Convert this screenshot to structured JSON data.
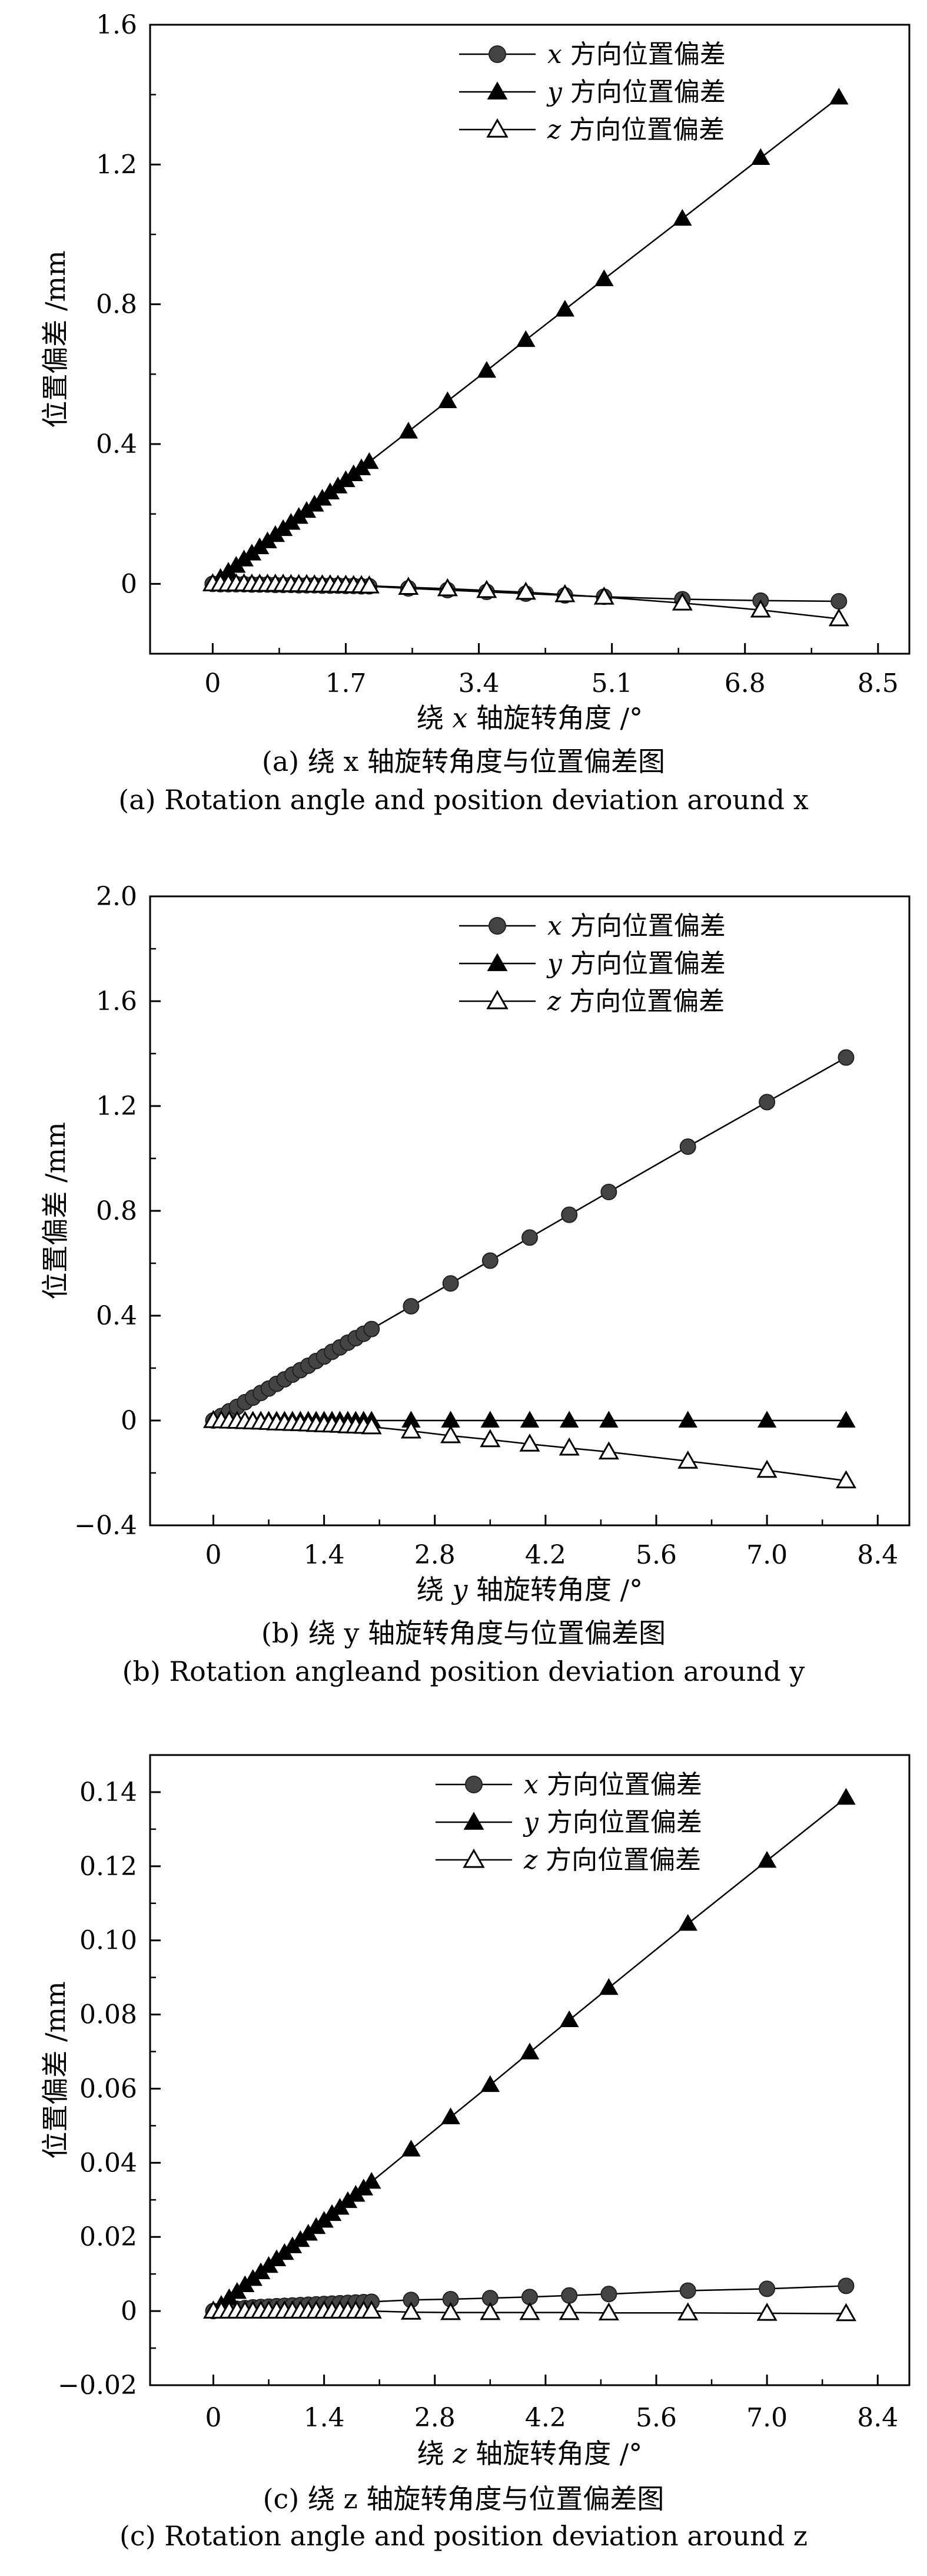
{
  "series_labels": {
    "x": {
      "var": "x",
      "text": "方向位置偏差"
    },
    "y": {
      "var": "y",
      "text": "方向位置偏差"
    },
    "z": {
      "var": "z",
      "text": "方向位置偏差"
    }
  },
  "chart_data": [
    {
      "type": "line",
      "ylabel": "位置偏差 /mm",
      "xlabel_prefix": "绕",
      "xlabel_var": "x",
      "xlabel_suffix": "轴旋转角度 /°",
      "caption_cn": "(a) 绕 x 轴旋转角度与位置偏差图",
      "caption_en": "(a) Rotation angle and position deviation around x",
      "xlim": [
        -0.8,
        8.9
      ],
      "ylim": [
        -0.2,
        1.6
      ],
      "xticks": [
        "0",
        "1.7",
        "3.4",
        "5.1",
        "6.8",
        "8.5"
      ],
      "xtick_values": [
        0,
        1.7,
        3.4,
        5.1,
        6.8,
        8.5
      ],
      "yticks": [
        "0",
        "0.4",
        "0.8",
        "1.2",
        "1.6"
      ],
      "ytick_values": [
        0,
        0.4,
        0.8,
        1.2,
        1.6
      ],
      "x": [
        0,
        0.1,
        0.2,
        0.3,
        0.4,
        0.5,
        0.6,
        0.7,
        0.8,
        0.9,
        1.0,
        1.1,
        1.2,
        1.3,
        1.4,
        1.5,
        1.6,
        1.7,
        1.8,
        1.9,
        2.0,
        2.5,
        3.0,
        3.5,
        4.0,
        4.5,
        5.0,
        6.0,
        7.0,
        8.0
      ],
      "series": [
        {
          "key": "x",
          "marker": "circle",
          "values": [
            0,
            -0.001,
            -0.001,
            -0.001,
            -0.001,
            -0.002,
            -0.002,
            -0.002,
            -0.003,
            -0.003,
            -0.003,
            -0.004,
            -0.004,
            -0.004,
            -0.005,
            -0.005,
            -0.005,
            -0.006,
            -0.006,
            -0.007,
            -0.007,
            -0.013,
            -0.018,
            -0.023,
            -0.028,
            -0.033,
            -0.037,
            -0.044,
            -0.048,
            -0.05
          ]
        },
        {
          "key": "y",
          "marker": "triangle-filled",
          "values": [
            0,
            0.017,
            0.035,
            0.052,
            0.07,
            0.087,
            0.105,
            0.122,
            0.14,
            0.157,
            0.175,
            0.192,
            0.209,
            0.227,
            0.244,
            0.262,
            0.279,
            0.297,
            0.314,
            0.331,
            0.349,
            0.436,
            0.523,
            0.61,
            0.698,
            0.785,
            0.872,
            1.045,
            1.219,
            1.392
          ]
        },
        {
          "key": "z",
          "marker": "triangle-open",
          "values": [
            0,
            0,
            0,
            0,
            0,
            -0.001,
            -0.001,
            -0.001,
            -0.001,
            -0.001,
            -0.002,
            -0.002,
            -0.002,
            -0.003,
            -0.003,
            -0.003,
            -0.004,
            -0.004,
            -0.005,
            -0.005,
            -0.006,
            -0.01,
            -0.014,
            -0.019,
            -0.024,
            -0.031,
            -0.038,
            -0.055,
            -0.075,
            -0.1
          ]
        }
      ]
    },
    {
      "type": "line",
      "ylabel": "位置偏差 /mm",
      "xlabel_prefix": "绕",
      "xlabel_var": "y",
      "xlabel_suffix": "轴旋转角度 /°",
      "caption_cn": "(b) 绕 y 轴旋转角度与位置偏差图",
      "caption_en": "(b) Rotation angleand position deviation around y",
      "xlim": [
        -0.8,
        8.8
      ],
      "ylim": [
        -0.4,
        2.0
      ],
      "xticks": [
        "0",
        "1.4",
        "2.8",
        "4.2",
        "5.6",
        "7.0",
        "8.4"
      ],
      "xtick_values": [
        0,
        1.4,
        2.8,
        4.2,
        5.6,
        7.0,
        8.4
      ],
      "yticks": [
        "−0.4",
        "0",
        "0.4",
        "0.8",
        "1.2",
        "1.6",
        "2.0"
      ],
      "ytick_values": [
        -0.4,
        0,
        0.4,
        0.8,
        1.2,
        1.6,
        2.0
      ],
      "x": [
        0,
        0.1,
        0.2,
        0.3,
        0.4,
        0.5,
        0.6,
        0.7,
        0.8,
        0.9,
        1.0,
        1.1,
        1.2,
        1.3,
        1.4,
        1.5,
        1.6,
        1.7,
        1.8,
        1.9,
        2.0,
        2.5,
        3.0,
        3.5,
        4.0,
        4.5,
        5.0,
        6.0,
        7.0,
        8.0
      ],
      "series": [
        {
          "key": "x",
          "marker": "circle",
          "values": [
            0,
            0.017,
            0.035,
            0.052,
            0.07,
            0.087,
            0.105,
            0.122,
            0.14,
            0.157,
            0.175,
            0.192,
            0.209,
            0.227,
            0.244,
            0.262,
            0.279,
            0.297,
            0.314,
            0.331,
            0.349,
            0.436,
            0.523,
            0.61,
            0.698,
            0.785,
            0.872,
            1.045,
            1.215,
            1.385
          ]
        },
        {
          "key": "y",
          "marker": "triangle-filled",
          "values": [
            0,
            0,
            0,
            0,
            0,
            0,
            0,
            0,
            0,
            0,
            0,
            0,
            0,
            0,
            0,
            0,
            0,
            0,
            0,
            0,
            0,
            0,
            0,
            0,
            0,
            0,
            0,
            0,
            0,
            0
          ]
        },
        {
          "key": "z",
          "marker": "triangle-open",
          "values": [
            0,
            -0.001,
            -0.002,
            -0.003,
            -0.004,
            -0.005,
            -0.006,
            -0.007,
            -0.009,
            -0.01,
            -0.011,
            -0.012,
            -0.013,
            -0.015,
            -0.016,
            -0.017,
            -0.018,
            -0.02,
            -0.021,
            -0.022,
            -0.024,
            -0.04,
            -0.058,
            -0.073,
            -0.09,
            -0.105,
            -0.12,
            -0.155,
            -0.19,
            -0.23
          ]
        }
      ]
    },
    {
      "type": "line",
      "ylabel": "位置偏差 /mm",
      "xlabel_prefix": "绕",
      "xlabel_var": "z",
      "xlabel_suffix": "轴旋转角度 /°",
      "caption_cn": "(c) 绕 z 轴旋转角度与位置偏差图",
      "caption_en": "(c) Rotation angle and position deviation around z",
      "xlim": [
        -0.8,
        8.8
      ],
      "ylim": [
        -0.02,
        0.15
      ],
      "xticks": [
        "0",
        "1.4",
        "2.8",
        "4.2",
        "5.6",
        "7.0",
        "8.4"
      ],
      "xtick_values": [
        0,
        1.4,
        2.8,
        4.2,
        5.6,
        7.0,
        8.4
      ],
      "yticks": [
        "−0.02",
        "0",
        "0.02",
        "0.04",
        "0.06",
        "0.08",
        "0.10",
        "0.12",
        "0.14"
      ],
      "ytick_values": [
        -0.02,
        0,
        0.02,
        0.04,
        0.06,
        0.08,
        0.1,
        0.12,
        0.14
      ],
      "x": [
        0,
        0.1,
        0.2,
        0.3,
        0.4,
        0.5,
        0.6,
        0.7,
        0.8,
        0.9,
        1.0,
        1.1,
        1.2,
        1.3,
        1.4,
        1.5,
        1.6,
        1.7,
        1.8,
        1.9,
        2.0,
        2.5,
        3.0,
        3.5,
        4.0,
        4.5,
        5.0,
        6.0,
        7.0,
        8.0
      ],
      "series": [
        {
          "key": "x",
          "marker": "circle",
          "values": [
            0,
            0.0002,
            0.0004,
            0.0006,
            0.0008,
            0.001,
            0.0011,
            0.0012,
            0.0013,
            0.0014,
            0.0015,
            0.0016,
            0.0017,
            0.0018,
            0.0019,
            0.002,
            0.0021,
            0.0022,
            0.0023,
            0.0024,
            0.0025,
            0.003,
            0.0032,
            0.0035,
            0.0038,
            0.0042,
            0.0046,
            0.0055,
            0.006,
            0.0068
          ]
        },
        {
          "key": "y",
          "marker": "triangle-filled",
          "values": [
            0,
            0.0017,
            0.0035,
            0.0052,
            0.007,
            0.0087,
            0.0105,
            0.0122,
            0.014,
            0.0157,
            0.0175,
            0.0192,
            0.0209,
            0.0227,
            0.0244,
            0.0262,
            0.0279,
            0.0297,
            0.0314,
            0.0331,
            0.0349,
            0.0436,
            0.0523,
            0.061,
            0.0698,
            0.0785,
            0.0872,
            0.1045,
            0.1215,
            0.1385
          ]
        },
        {
          "key": "z",
          "marker": "triangle-open",
          "values": [
            0,
            0,
            0,
            0,
            0,
            0,
            0,
            0,
            0,
            0,
            0,
            0,
            0,
            0,
            0,
            0,
            0,
            0,
            0,
            0,
            0,
            -0.0003,
            -0.0004,
            -0.0004,
            -0.0004,
            -0.0004,
            -0.0005,
            -0.0005,
            -0.0006,
            -0.0007
          ]
        }
      ]
    }
  ]
}
